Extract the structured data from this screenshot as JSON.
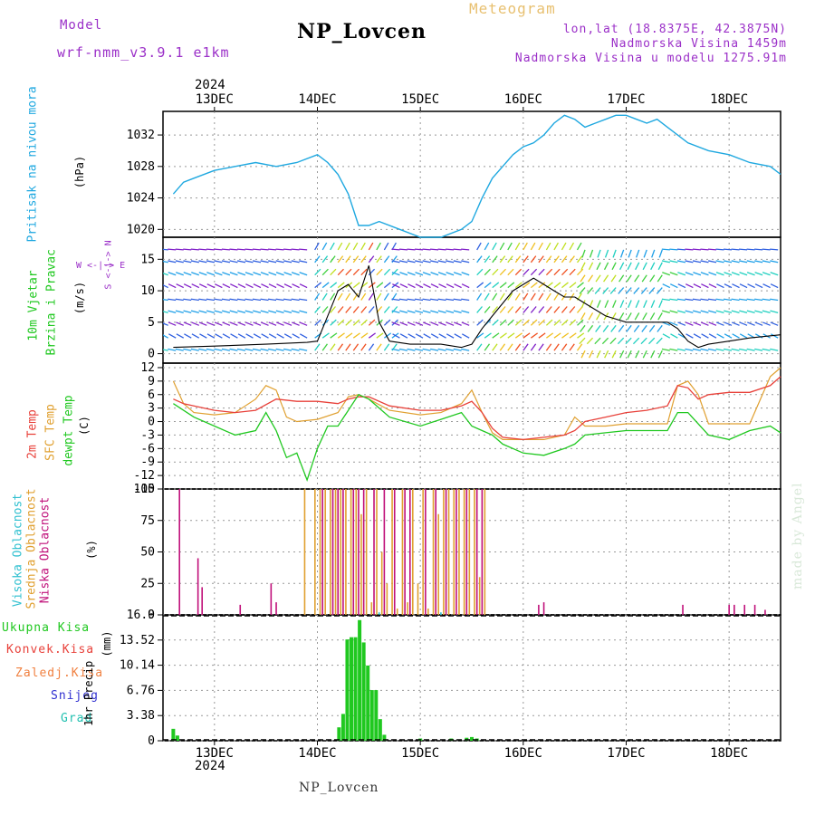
{
  "header": {
    "model_label": "Model",
    "model_name": "wrf-nmm_v3.9.1 e1km",
    "title": "NP_Lovcen",
    "meteogram_label": "Meteogram",
    "lonlat": "lon,lat (18.8375E, 42.3875N)",
    "elevation": "Nadmorska Visina 1459m",
    "model_elevation": "Nadmorska Visina u modelu 1275.91m"
  },
  "footer": {
    "station": "NP_Lovcen",
    "watermark": "made by Angel"
  },
  "time_axis": {
    "year": "2024",
    "days": [
      "13DEC",
      "14DEC",
      "15DEC",
      "16DEC",
      "17DEC",
      "18DEC"
    ]
  },
  "colors": {
    "pressure": "#1fa8e0",
    "temp": "#e8413a",
    "sfc": "#e0a030",
    "dewpt": "#20c820",
    "low": "#c0107a",
    "mid": "#e0a030",
    "high": "#30c0d0",
    "precip": "#20c820",
    "conv": "#e8413a",
    "snow": "#3030d0",
    "purple": "#9b30c8"
  },
  "chart_data": [
    {
      "type": "line",
      "ylabel_main": "Pritisak na nivou mora",
      "unit": "(hPa)",
      "yticks": [
        1020,
        1024,
        1028,
        1032
      ],
      "ylim": [
        1019,
        1035
      ],
      "series": [
        {
          "x": [
            12.6,
            12.7,
            12.8,
            13.0,
            13.2,
            13.4,
            13.6,
            13.8,
            14.0,
            14.1,
            14.2,
            14.3,
            14.4,
            14.5,
            14.6,
            14.8,
            15.0,
            15.2,
            15.4,
            15.5,
            15.6,
            15.7,
            15.8,
            15.9,
            16.0,
            16.1,
            16.2,
            16.3,
            16.4,
            16.5,
            16.6,
            16.7,
            16.8,
            16.9,
            17.0,
            17.1,
            17.2,
            17.3,
            17.4,
            17.5,
            17.6,
            17.8,
            18.0,
            18.2,
            18.4,
            18.5
          ],
          "values": [
            1024.5,
            1026,
            1026.5,
            1027.5,
            1028,
            1028.5,
            1028,
            1028.5,
            1029.5,
            1028.5,
            1027,
            1024.5,
            1020.5,
            1020.5,
            1021,
            1020,
            1019,
            1019,
            1020,
            1021,
            1024,
            1026.5,
            1028,
            1029.5,
            1030.5,
            1031,
            1032,
            1033.5,
            1034.5,
            1034,
            1033,
            1033.5,
            1034,
            1034.5,
            1034.5,
            1034,
            1033.5,
            1034,
            1033,
            1032,
            1031,
            1030,
            1029.5,
            1028.5,
            1028,
            1027
          ]
        }
      ]
    },
    {
      "type": "line",
      "ylabel_main": "10m Vjetar",
      "ylabel_sub": "Brzina i Pravac",
      "unit": "(m/s)",
      "compass": "W  <-|->  E",
      "compass_vertical": "S <-|-> N",
      "yticks": [
        0,
        5,
        10,
        15
      ],
      "ylim": [
        -1.5,
        18.5
      ],
      "series": [
        {
          "name": "speed",
          "x": [
            12.6,
            13.0,
            13.5,
            13.9,
            14.0,
            14.1,
            14.2,
            14.3,
            14.4,
            14.5,
            14.6,
            14.7,
            14.9,
            15.0,
            15.2,
            15.4,
            15.5,
            15.6,
            15.7,
            15.8,
            15.9,
            16.0,
            16.1,
            16.2,
            16.3,
            16.4,
            16.5,
            16.6,
            16.8,
            17.0,
            17.2,
            17.4,
            17.5,
            17.6,
            17.7,
            17.8,
            18.0,
            18.2,
            18.5
          ],
          "values": [
            1,
            1.2,
            1.5,
            1.8,
            2,
            6,
            10,
            11,
            9,
            14,
            5,
            2,
            1.5,
            1.5,
            1.5,
            1,
            1.5,
            4,
            6,
            8,
            10,
            11,
            12,
            11,
            10,
            9,
            9,
            8,
            6,
            5,
            5,
            5,
            4,
            2,
            1,
            1.5,
            2,
            2.5,
            3
          ]
        }
      ]
    },
    {
      "type": "line",
      "ylabel_a": "2m Temp",
      "ylabel_b": "SFC Temp",
      "ylabel_c": "dewpt Temp",
      "unit": "(C)",
      "yticks": [
        -15,
        -12,
        -9,
        -6,
        -3,
        0,
        3,
        6,
        9,
        12
      ],
      "ylim": [
        -15,
        13
      ],
      "series": [
        {
          "name": "2m Temp",
          "x": [
            12.6,
            12.7,
            12.8,
            13.0,
            13.2,
            13.4,
            13.6,
            13.8,
            14.0,
            14.2,
            14.3,
            14.4,
            14.5,
            14.7,
            15.0,
            15.2,
            15.4,
            15.5,
            15.6,
            15.7,
            15.8,
            16.0,
            16.2,
            16.4,
            16.5,
            16.6,
            16.8,
            17.0,
            17.2,
            17.4,
            17.5,
            17.6,
            17.7,
            17.8,
            18.0,
            18.2,
            18.4,
            18.5
          ],
          "values": [
            5,
            4,
            3.5,
            2.5,
            2,
            2.5,
            5,
            4.5,
            4.5,
            4,
            5,
            5.5,
            5.5,
            3.5,
            2.5,
            2.5,
            3.5,
            4.5,
            2,
            -1.5,
            -3.5,
            -4,
            -3.5,
            -3,
            -2,
            0,
            1,
            2,
            2.5,
            3.5,
            8,
            7.5,
            5,
            6,
            6.5,
            6.5,
            8,
            10
          ]
        },
        {
          "name": "SFC Temp",
          "x": [
            12.6,
            12.7,
            12.8,
            13.0,
            13.2,
            13.4,
            13.5,
            13.6,
            13.7,
            13.8,
            14.0,
            14.2,
            14.3,
            14.4,
            14.5,
            14.7,
            15.0,
            15.2,
            15.4,
            15.5,
            15.6,
            15.7,
            15.8,
            16.0,
            16.2,
            16.4,
            16.5,
            16.6,
            16.8,
            17.0,
            17.2,
            17.4,
            17.5,
            17.6,
            17.7,
            17.8,
            18.0,
            18.2,
            18.4,
            18.5
          ],
          "values": [
            9,
            4,
            2,
            1.5,
            2,
            5,
            8,
            7,
            1,
            0,
            0.5,
            2,
            5.5,
            6,
            5,
            2.5,
            1.5,
            2,
            4,
            7,
            2,
            -2.5,
            -4,
            -4,
            -4,
            -3,
            1,
            -1,
            -1,
            -0.5,
            -0.5,
            -0.5,
            8,
            9,
            6,
            -0.5,
            -0.5,
            -0.5,
            10,
            12
          ]
        },
        {
          "name": "dewpt Temp",
          "x": [
            12.6,
            12.8,
            13.0,
            13.2,
            13.4,
            13.5,
            13.6,
            13.7,
            13.8,
            13.9,
            14.0,
            14.1,
            14.2,
            14.4,
            14.5,
            14.7,
            15.0,
            15.2,
            15.4,
            15.5,
            15.6,
            15.7,
            15.8,
            16.0,
            16.2,
            16.4,
            16.5,
            16.6,
            16.8,
            17.0,
            17.2,
            17.4,
            17.5,
            17.6,
            17.8,
            18.0,
            18.2,
            18.4,
            18.5
          ],
          "values": [
            4,
            1,
            -1,
            -3,
            -2,
            2,
            -2,
            -8,
            -7,
            -13,
            -6,
            -1,
            -1,
            6,
            5,
            1,
            -1,
            0.5,
            2,
            -1,
            -2,
            -3,
            -5,
            -7,
            -7.5,
            -6,
            -5,
            -3,
            -2.5,
            -2,
            -2,
            -2,
            2,
            2,
            -3,
            -4,
            -2,
            -1,
            -2.5
          ]
        }
      ]
    },
    {
      "type": "bar",
      "ylabel_a": "Visoka Oblacnost",
      "ylabel_b": "Srednja Oblacnost",
      "ylabel_c": "Niska Oblacnost",
      "unit": "(%)",
      "yticks": [
        0,
        25,
        50,
        75,
        100
      ],
      "ylim": [
        0,
        100
      ],
      "series": [
        {
          "name": "Niska Oblacnost",
          "x": [
            12.66,
            12.84,
            12.88,
            13.25,
            13.55,
            13.6,
            14.05,
            14.15,
            14.2,
            14.25,
            14.35,
            14.4,
            14.45,
            14.55,
            14.65,
            14.75,
            14.85,
            14.9,
            15.05,
            15.15,
            15.25,
            15.35,
            15.45,
            15.55,
            15.6,
            16.15,
            16.2,
            17.55,
            18.0,
            18.05,
            18.15,
            18.25,
            18.35
          ],
          "values": [
            100,
            45,
            22,
            8,
            25,
            10,
            100,
            100,
            100,
            100,
            100,
            100,
            100,
            100,
            100,
            100,
            100,
            100,
            100,
            100,
            100,
            100,
            100,
            100,
            100,
            8,
            10,
            8,
            8,
            8,
            8,
            8,
            4
          ]
        },
        {
          "name": "Srednja Oblacnost",
          "x": [
            13.85,
            13.95,
            14.0,
            14.05,
            14.1,
            14.15,
            14.2,
            14.25,
            14.3,
            14.35,
            14.4,
            14.45,
            14.5,
            14.55,
            14.6,
            14.65,
            14.7,
            14.75,
            14.8,
            14.85,
            14.9,
            14.95,
            15.0,
            15.05,
            15.1,
            15.15,
            15.2,
            15.25,
            15.3,
            15.35,
            15.4,
            15.45,
            15.5,
            15.55,
            15.6
          ],
          "values": [
            100,
            100,
            100,
            100,
            100,
            100,
            100,
            100,
            100,
            100,
            80,
            100,
            10,
            100,
            50,
            25,
            100,
            5,
            100,
            10,
            100,
            25,
            100,
            5,
            100,
            80,
            100,
            100,
            100,
            100,
            100,
            100,
            100,
            30,
            100
          ]
        },
        {
          "name": "Visoka Oblacnost",
          "x": [
            14.6,
            15.2
          ],
          "values": [
            2,
            2
          ]
        }
      ]
    },
    {
      "type": "bar",
      "ylabel_main": "1hr Precip",
      "unit": "(mm)",
      "legend": [
        "Ukupna Kisa",
        "Konvek.Kisa",
        "Zaledj.Kisa",
        "Snijeg",
        "Grad"
      ],
      "yticks": [
        0,
        3.38,
        6.76,
        10.14,
        13.52,
        16.9
      ],
      "ylim": [
        0,
        16.9
      ],
      "series": [
        {
          "name": "Ukupna Kisa",
          "x": [
            12.6,
            12.64,
            14.21,
            14.25,
            14.29,
            14.33,
            14.37,
            14.41,
            14.45,
            14.49,
            14.53,
            14.57,
            14.61,
            14.65,
            15.0,
            15.3,
            15.45,
            15.5,
            15.55
          ],
          "values": [
            1.6,
            0.7,
            1.8,
            3.6,
            13.6,
            13.9,
            13.9,
            16.2,
            13.2,
            10.1,
            6.8,
            6.8,
            2.9,
            0.8,
            0.3,
            0.3,
            0.4,
            0.5,
            0.3
          ]
        }
      ]
    }
  ]
}
